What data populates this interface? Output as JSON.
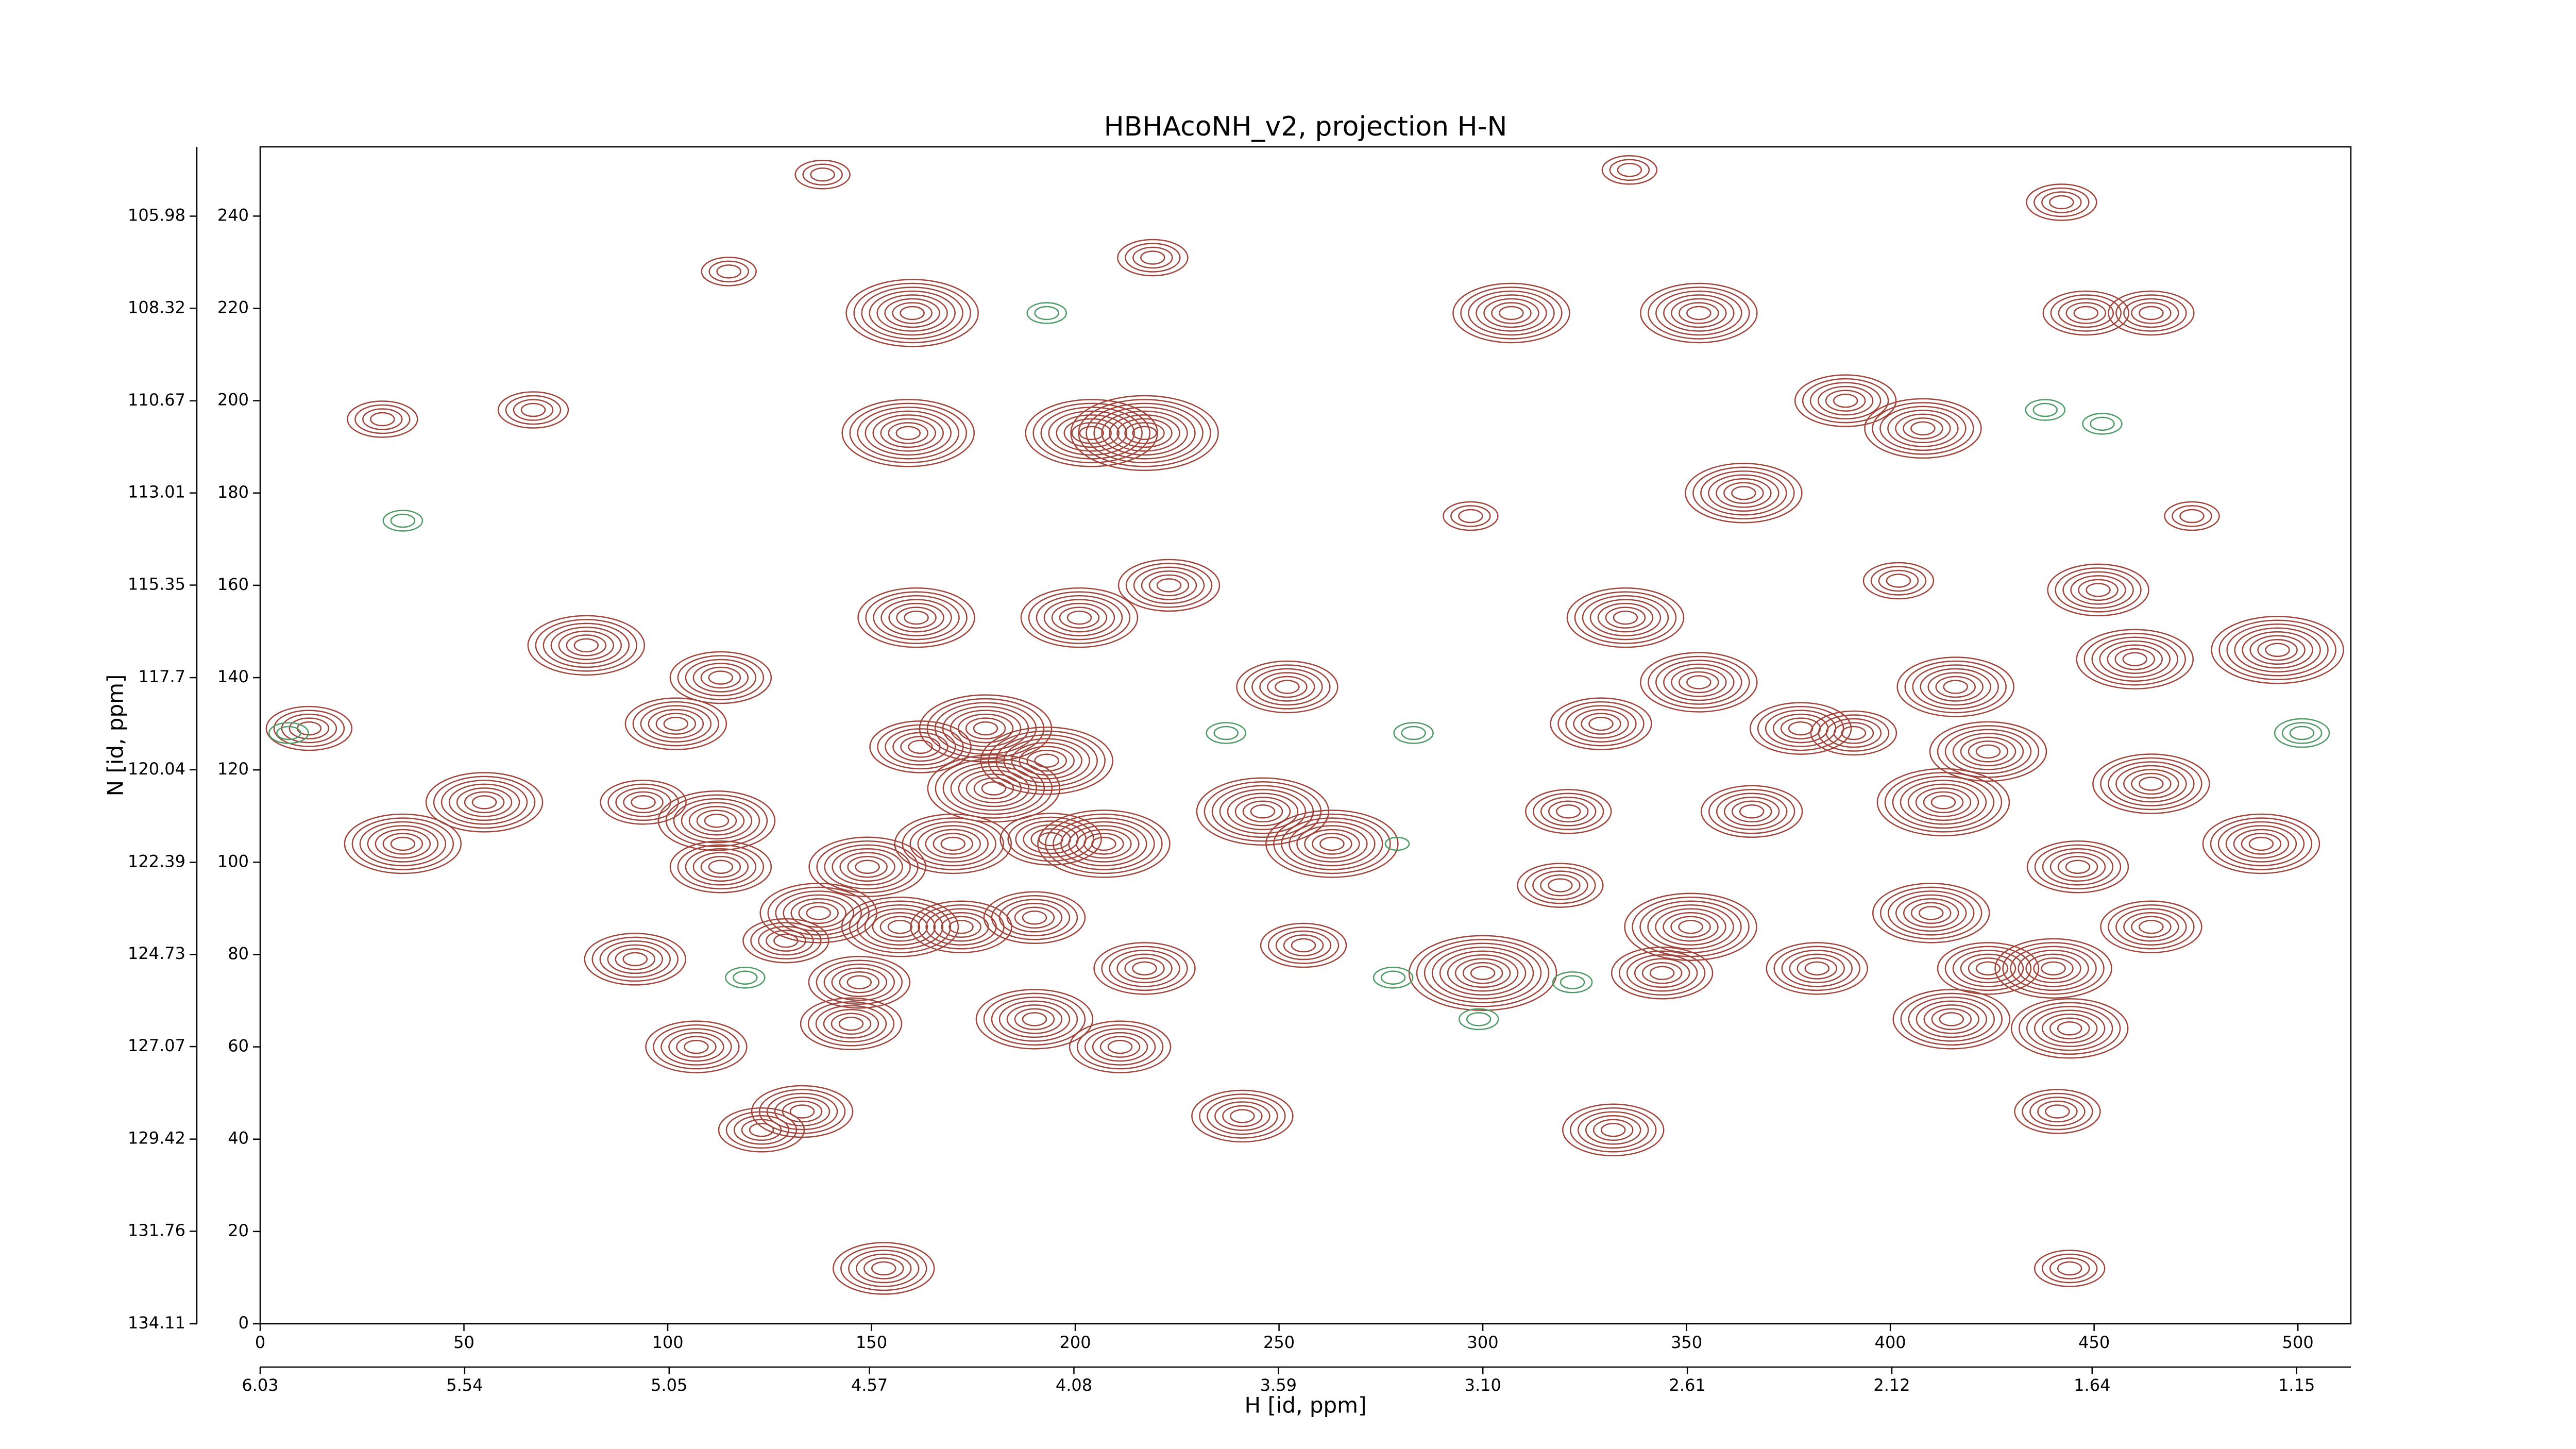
{
  "chart_data": {
    "type": "contour",
    "title": "HBHAcoNH_v2, projection H-N",
    "x_label": "H [id, ppm]",
    "y_label": "N [id, ppm]",
    "xlim": [
      0,
      513
    ],
    "ylim": [
      0,
      255
    ],
    "xticks": [
      0,
      50,
      100,
      150,
      200,
      250,
      300,
      350,
      400,
      450,
      500
    ],
    "yticks": [
      0,
      20,
      40,
      60,
      80,
      100,
      120,
      140,
      160,
      180,
      200,
      220,
      240
    ],
    "x2lim": [
      6.03,
      1.02
    ],
    "x2ticks": [
      6.03,
      5.54,
      5.05,
      4.57,
      4.08,
      3.59,
      {
        "value": 3.1,
        "label": "3.10"
      },
      2.61,
      2.12,
      1.64,
      1.15
    ],
    "y2lim": [
      134.11,
      104.22
    ],
    "y2ticks": [
      134.11,
      131.76,
      129.42,
      127.07,
      124.73,
      122.39,
      120.04,
      117.7,
      115.35,
      113.01,
      110.67,
      108.32,
      105.98
    ],
    "positive": {
      "color": "#a0453c",
      "x": [
        160,
        307,
        353,
        464,
        448,
        159,
        217,
        204,
        389,
        408,
        364,
        161,
        201,
        223,
        335,
        402,
        451,
        460,
        495,
        80,
        113,
        252,
        353,
        416,
        102,
        12,
        178,
        193,
        162,
        180,
        207,
        194,
        170,
        149,
        137,
        157,
        172,
        190,
        55,
        35,
        112,
        113,
        94,
        246,
        263,
        329,
        321,
        319,
        351,
        366,
        410,
        413,
        424,
        378,
        391,
        464,
        446,
        491,
        464,
        440,
        424,
        415,
        444,
        344,
        382,
        300,
        256,
        217,
        190,
        147,
        145,
        129,
        92,
        107,
        211,
        133,
        123,
        241,
        332,
        441,
        153,
        444,
        67,
        30,
        297,
        474,
        442,
        219,
        115,
        138,
        336
      ],
      "y": [
        219,
        219,
        219,
        219,
        219,
        193,
        193,
        193,
        200,
        194,
        180,
        153,
        153,
        160,
        153,
        161,
        159,
        144,
        146,
        147,
        140,
        138,
        139,
        138,
        130,
        129,
        129,
        122,
        125,
        116,
        104,
        105,
        104,
        99,
        89,
        86,
        86,
        88,
        113,
        104,
        109,
        99,
        113,
        111,
        104,
        130,
        111,
        95,
        86,
        111,
        89,
        113,
        124,
        129,
        128,
        117,
        99,
        104,
        86,
        77,
        77,
        66,
        64,
        76,
        77,
        76,
        82,
        77,
        66,
        74,
        65,
        83,
        79,
        60,
        60,
        46,
        42,
        45,
        42,
        46,
        12,
        12,
        198,
        196,
        175,
        175,
        243,
        231,
        228,
        249,
        250
      ],
      "levels": [
        8,
        7,
        7,
        5,
        5,
        8,
        9,
        8,
        6,
        7,
        7,
        7,
        7,
        6,
        7,
        4,
        6,
        7,
        8,
        7,
        6,
        6,
        7,
        7,
        6,
        5,
        8,
        8,
        6,
        8,
        8,
        6,
        7,
        7,
        7,
        7,
        6,
        6,
        7,
        7,
        7,
        6,
        5,
        8,
        8,
        6,
        5,
        5,
        8,
        6,
        7,
        8,
        7,
        6,
        5,
        7,
        6,
        7,
        6,
        7,
        6,
        7,
        7,
        6,
        6,
        9,
        5,
        6,
        7,
        6,
        6,
        5,
        6,
        6,
        6,
        6,
        5,
        6,
        6,
        5,
        6,
        4,
        4,
        4,
        3,
        3,
        4,
        4,
        3,
        3,
        3
      ]
    },
    "negative": {
      "color": "#4e9a64",
      "x": [
        193,
        35,
        438,
        452,
        501,
        237,
        283,
        278,
        322,
        119,
        299,
        7,
        279
      ],
      "y": [
        219,
        174,
        198,
        195,
        128,
        128,
        128,
        75,
        74,
        75,
        66,
        128,
        104
      ],
      "levels": [
        2,
        2,
        2,
        2,
        3,
        2,
        2,
        2,
        2,
        2,
        2,
        2,
        1
      ]
    }
  }
}
